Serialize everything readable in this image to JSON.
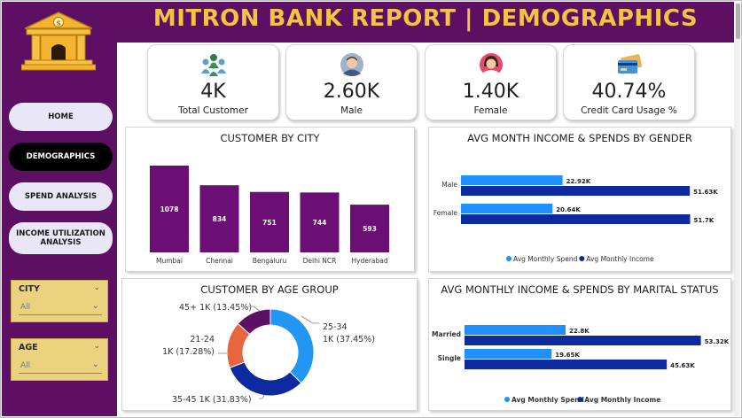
{
  "header": {
    "title": "MITRON BANK REPORT | DEMOGRAPHICS"
  },
  "nav": {
    "items": [
      {
        "label": "HOME"
      },
      {
        "label": "DEMOGRAPHICS"
      },
      {
        "label": "SPEND ANALYSIS"
      },
      {
        "label": "INCOME UTILIZATION ANALYSIS"
      }
    ]
  },
  "filters": {
    "city": {
      "label": "CITY",
      "value": "All"
    },
    "age": {
      "label": "AGE",
      "value": "All"
    }
  },
  "kpis": [
    {
      "value": "4K",
      "label": "Total Customer",
      "icon": "people-group-icon"
    },
    {
      "value": "2.60K",
      "label": "Male",
      "icon": "male-avatar-icon"
    },
    {
      "value": "1.40K",
      "label": "Female",
      "icon": "female-avatar-icon"
    },
    {
      "value": "40.74%",
      "label": "Credit Card Usage %",
      "icon": "credit-card-icon"
    }
  ],
  "colors": {
    "brand": "#5c0f63",
    "title": "#f6c244",
    "bar": "#6b0f75",
    "spend": "#1e90ff",
    "income": "#0d2a9e",
    "slicer": "#ead27e"
  },
  "chart_data": [
    {
      "type": "bar",
      "title": "CUSTOMER BY CITY",
      "categories": [
        "Mumbai",
        "Chennai",
        "Bengaluru",
        "Delhi NCR",
        "Hyderabad"
      ],
      "values": [
        1078,
        834,
        751,
        744,
        593
      ],
      "data_labels": [
        "1078",
        "834",
        "751",
        "744",
        "593"
      ],
      "ylim": [
        0,
        1100
      ]
    },
    {
      "type": "bar",
      "orientation": "horizontal",
      "title": "AVG MONTH INCOME & SPENDS BY GENDER",
      "categories": [
        "Male",
        "Female"
      ],
      "series": [
        {
          "name": "Avg Monthly Spend",
          "values": [
            22.92,
            20.64
          ],
          "labels": [
            "22.92K",
            "20.64K"
          ]
        },
        {
          "name": "Avg Monthly Income",
          "values": [
            51.63,
            51.7
          ],
          "labels": [
            "51.63K",
            "51.7K"
          ]
        }
      ],
      "xlim": [
        0,
        60
      ],
      "legend": "bottom"
    },
    {
      "type": "pie",
      "donut": true,
      "title": "CUSTOMER BY AGE GROUP",
      "categories": [
        "25-34",
        "35-45",
        "21-24",
        "45+"
      ],
      "values": [
        37.45,
        31.83,
        17.28,
        13.45
      ],
      "labels": [
        "25-34\n1K (37.45%)",
        "35-45 1K (31.83%)",
        "21-24\n1K (17.28%)",
        "45+ 1K (13.45%)"
      ]
    },
    {
      "type": "bar",
      "orientation": "horizontal",
      "title": "AVG MONTHLY INCOME & SPENDS BY MARITAL STATUS",
      "categories": [
        "Married",
        "Single"
      ],
      "series": [
        {
          "name": "Avg Monthly Spend",
          "values": [
            22.8,
            19.65
          ],
          "labels": [
            "22.8K",
            "19.65K"
          ]
        },
        {
          "name": "Avg Monthly Income",
          "values": [
            53.32,
            45.63
          ],
          "labels": [
            "53.32K",
            "45.63K"
          ]
        }
      ],
      "xlim": [
        0,
        60
      ],
      "legend": "bottom"
    }
  ]
}
